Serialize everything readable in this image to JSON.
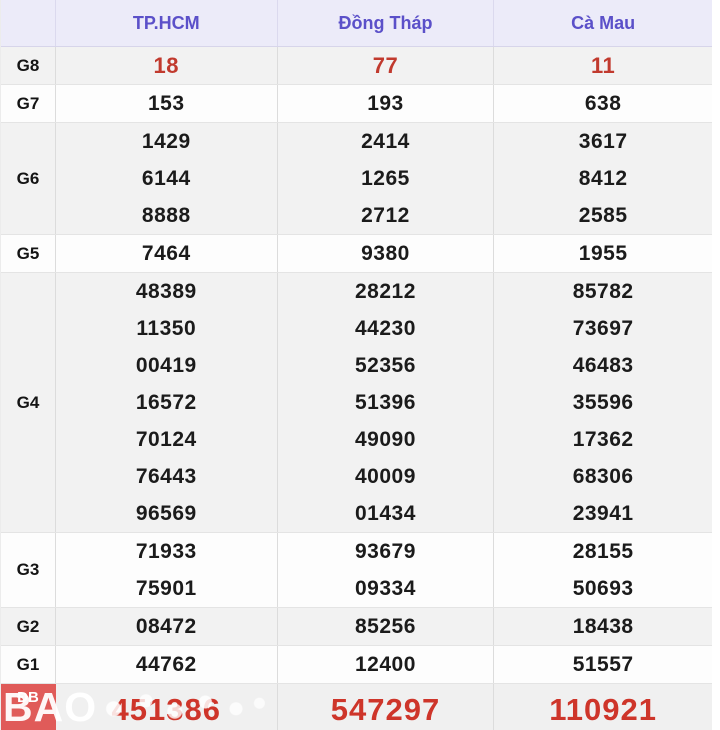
{
  "table": {
    "columns": [
      "TP.HCM",
      "Đồng Tháp",
      "Cà Mau"
    ],
    "rows": [
      {
        "label": "G8",
        "shaded": true,
        "style": "red",
        "cells": [
          [
            "18"
          ],
          [
            "77"
          ],
          [
            "11"
          ]
        ]
      },
      {
        "label": "G7",
        "shaded": false,
        "style": "black",
        "cells": [
          [
            "153"
          ],
          [
            "193"
          ],
          [
            "638"
          ]
        ]
      },
      {
        "label": "G6",
        "shaded": true,
        "style": "black",
        "cells": [
          [
            "1429",
            "6144",
            "8888"
          ],
          [
            "2414",
            "1265",
            "2712"
          ],
          [
            "3617",
            "8412",
            "2585"
          ]
        ]
      },
      {
        "label": "G5",
        "shaded": false,
        "style": "black",
        "cells": [
          [
            "7464"
          ],
          [
            "9380"
          ],
          [
            "1955"
          ]
        ]
      },
      {
        "label": "G4",
        "shaded": true,
        "style": "black",
        "cells": [
          [
            "48389",
            "11350",
            "00419",
            "16572",
            "70124",
            "76443",
            "96569"
          ],
          [
            "28212",
            "44230",
            "52356",
            "51396",
            "49090",
            "40009",
            "01434"
          ],
          [
            "85782",
            "73697",
            "46483",
            "35596",
            "17362",
            "68306",
            "23941"
          ]
        ]
      },
      {
        "label": "G3",
        "shaded": false,
        "style": "black",
        "cells": [
          [
            "71933",
            "75901"
          ],
          [
            "93679",
            "09334"
          ],
          [
            "28155",
            "50693"
          ]
        ]
      },
      {
        "label": "G2",
        "shaded": true,
        "style": "black",
        "cells": [
          [
            "08472"
          ],
          [
            "85256"
          ],
          [
            "18438"
          ]
        ]
      },
      {
        "label": "G1",
        "shaded": false,
        "style": "black",
        "cells": [
          [
            "44762"
          ],
          [
            "12400"
          ],
          [
            "51557"
          ]
        ]
      },
      {
        "label": "ĐB",
        "shaded": true,
        "style": "jackpot",
        "cells": [
          [
            "451386"
          ],
          [
            "547297"
          ],
          [
            "110921"
          ]
        ]
      }
    ]
  },
  "watermark": {
    "text": "BAO"
  },
  "colors": {
    "header_text": "#5b50c9",
    "header_bg": "#ecebf9",
    "highlight_red": "#c13a2e",
    "jackpot_red": "#ce352a",
    "jackpot_label_bg": "#e05b59",
    "shaded_row_bg": "#f2f2f2"
  }
}
